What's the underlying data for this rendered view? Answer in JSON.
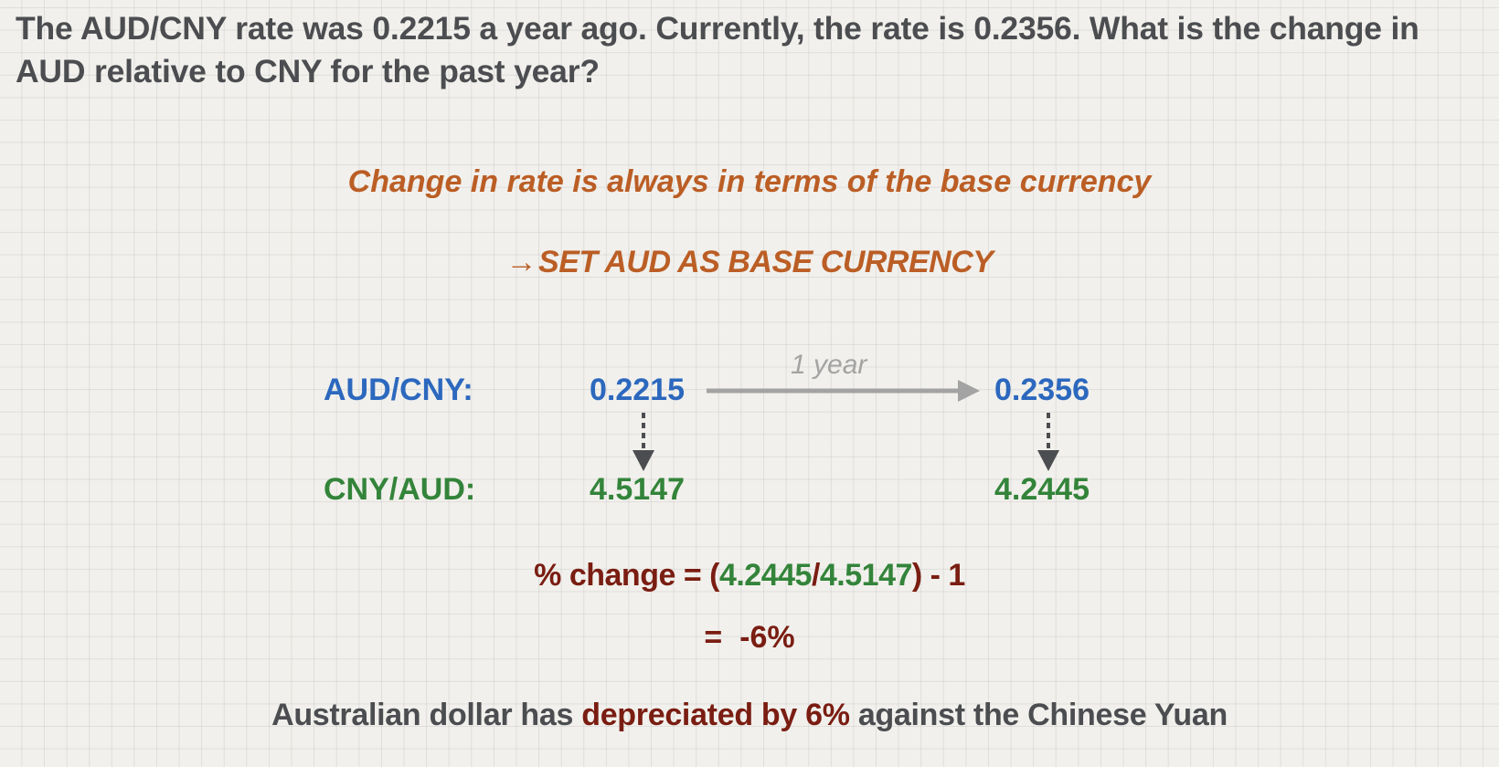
{
  "question": "The AUD/CNY rate was 0.2215 a year ago.  Currently, the rate is 0.2356.  What is the change in AUD relative to CNY for the past year?",
  "principle": "Change in rate is always in terms of the base currency",
  "instruction": {
    "arrow": "→",
    "text": "SET AUD AS BASE CURRENCY"
  },
  "rates": {
    "aud_cny_label": "AUD/CNY:",
    "cny_aud_label": "CNY/AUD:",
    "aud_cny_old": "0.2215",
    "aud_cny_new": "0.2356",
    "cny_aud_old": "4.5147",
    "cny_aud_new": "4.2445",
    "period": "1 year"
  },
  "formula": {
    "lhs": "% change = (",
    "numerator": "4.2445",
    "slash": "/",
    "denominator": "4.5147",
    "tail": ") - 1"
  },
  "result": "=  -6%",
  "conclusion": {
    "before": "Australian dollar has ",
    "highlight": "depreciated by 6%",
    "after": " against the Chinese Yuan"
  },
  "colors": {
    "text_gray": "#4b4d50",
    "orange": "#bb5e25",
    "blue": "#2c68be",
    "green": "#33843a",
    "maroon": "#7a1d12",
    "arrow_gray": "#a3a3a3",
    "dark_arrow": "#4b4d50"
  }
}
